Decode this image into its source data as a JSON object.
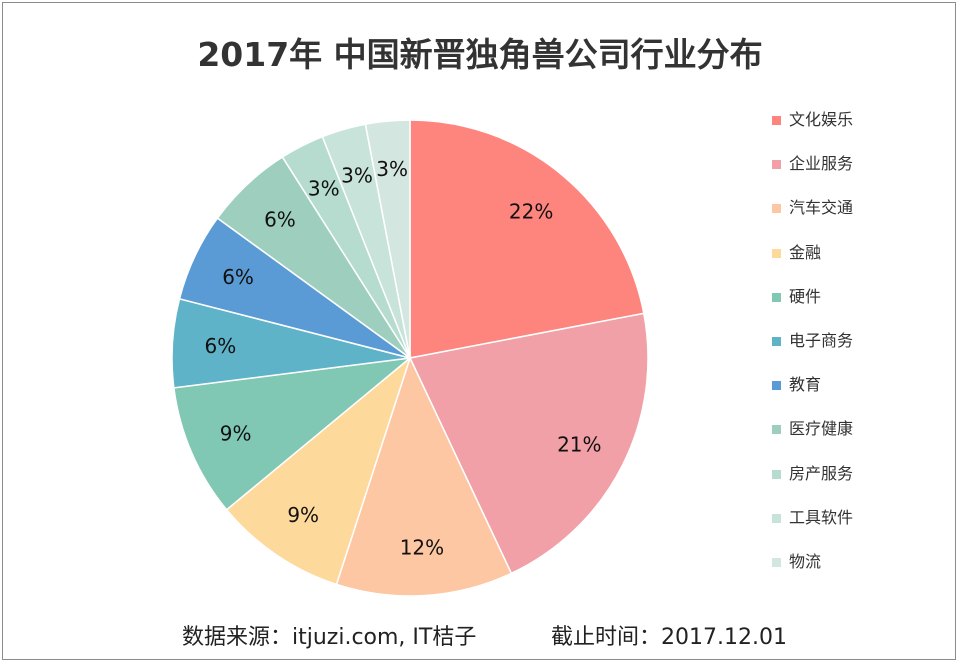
{
  "chart_data": {
    "type": "pie",
    "title": "2017年 中国新晋独角兽公司行业分布",
    "categories": [
      "文化娱乐",
      "企业服务",
      "汽车交通",
      "金融",
      "硬件",
      "电子商务",
      "教育",
      "医疗健康",
      "房产服务",
      "工具软件",
      "物流"
    ],
    "values": [
      22,
      21,
      12,
      9,
      9,
      6,
      6,
      6,
      3,
      3,
      3
    ],
    "labels": [
      "22%",
      "21%",
      "12%",
      "9%",
      "9%",
      "6%",
      "6%",
      "6%",
      "3%",
      "3%",
      "3%"
    ],
    "colors": [
      "#fe857e",
      "#f0a0a6",
      "#fcc7a2",
      "#fdd99b",
      "#80c8b4",
      "#5eb3c8",
      "#5b9bd5",
      "#9ecfbe",
      "#b5dccf",
      "#c8e3da",
      "#d3e7e0"
    ],
    "legend_position": "right"
  },
  "footer": {
    "source": "数据来源：itjuzi.com, IT桔子",
    "cutoff": "截止时间：2017.12.01"
  }
}
